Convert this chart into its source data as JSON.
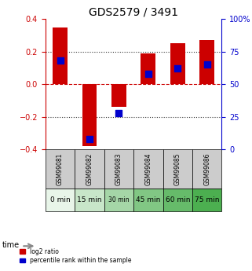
{
  "title": "GDS2579 / 3491",
  "samples": [
    "GSM99081",
    "GSM99082",
    "GSM99083",
    "GSM99084",
    "GSM99085",
    "GSM99086"
  ],
  "time_labels": [
    "0 min",
    "15 min",
    "30 min",
    "45 min",
    "60 min",
    "75 min"
  ],
  "time_colors": [
    "#d4edda",
    "#c8e6c9",
    "#b2dfdb",
    "#a5d6a7",
    "#81c784",
    "#66bb6a"
  ],
  "log2_values": [
    0.35,
    -0.38,
    -0.14,
    0.19,
    0.25,
    0.27
  ],
  "percentile_values": [
    0.68,
    0.08,
    0.28,
    0.58,
    0.62,
    0.65
  ],
  "ylim": [
    -0.4,
    0.4
  ],
  "yticks_left": [
    -0.4,
    -0.2,
    0,
    0.2,
    0.4
  ],
  "yticks_right": [
    0,
    25,
    50,
    75,
    100
  ],
  "bar_color": "#cc0000",
  "pct_color": "#0000cc",
  "grid_color": "#333333",
  "zero_line_color": "#cc0000",
  "bg_color": "#f5f5f5",
  "sample_bg": "#cccccc",
  "legend_red": "log2 ratio",
  "legend_blue": "percentile rank within the sample"
}
